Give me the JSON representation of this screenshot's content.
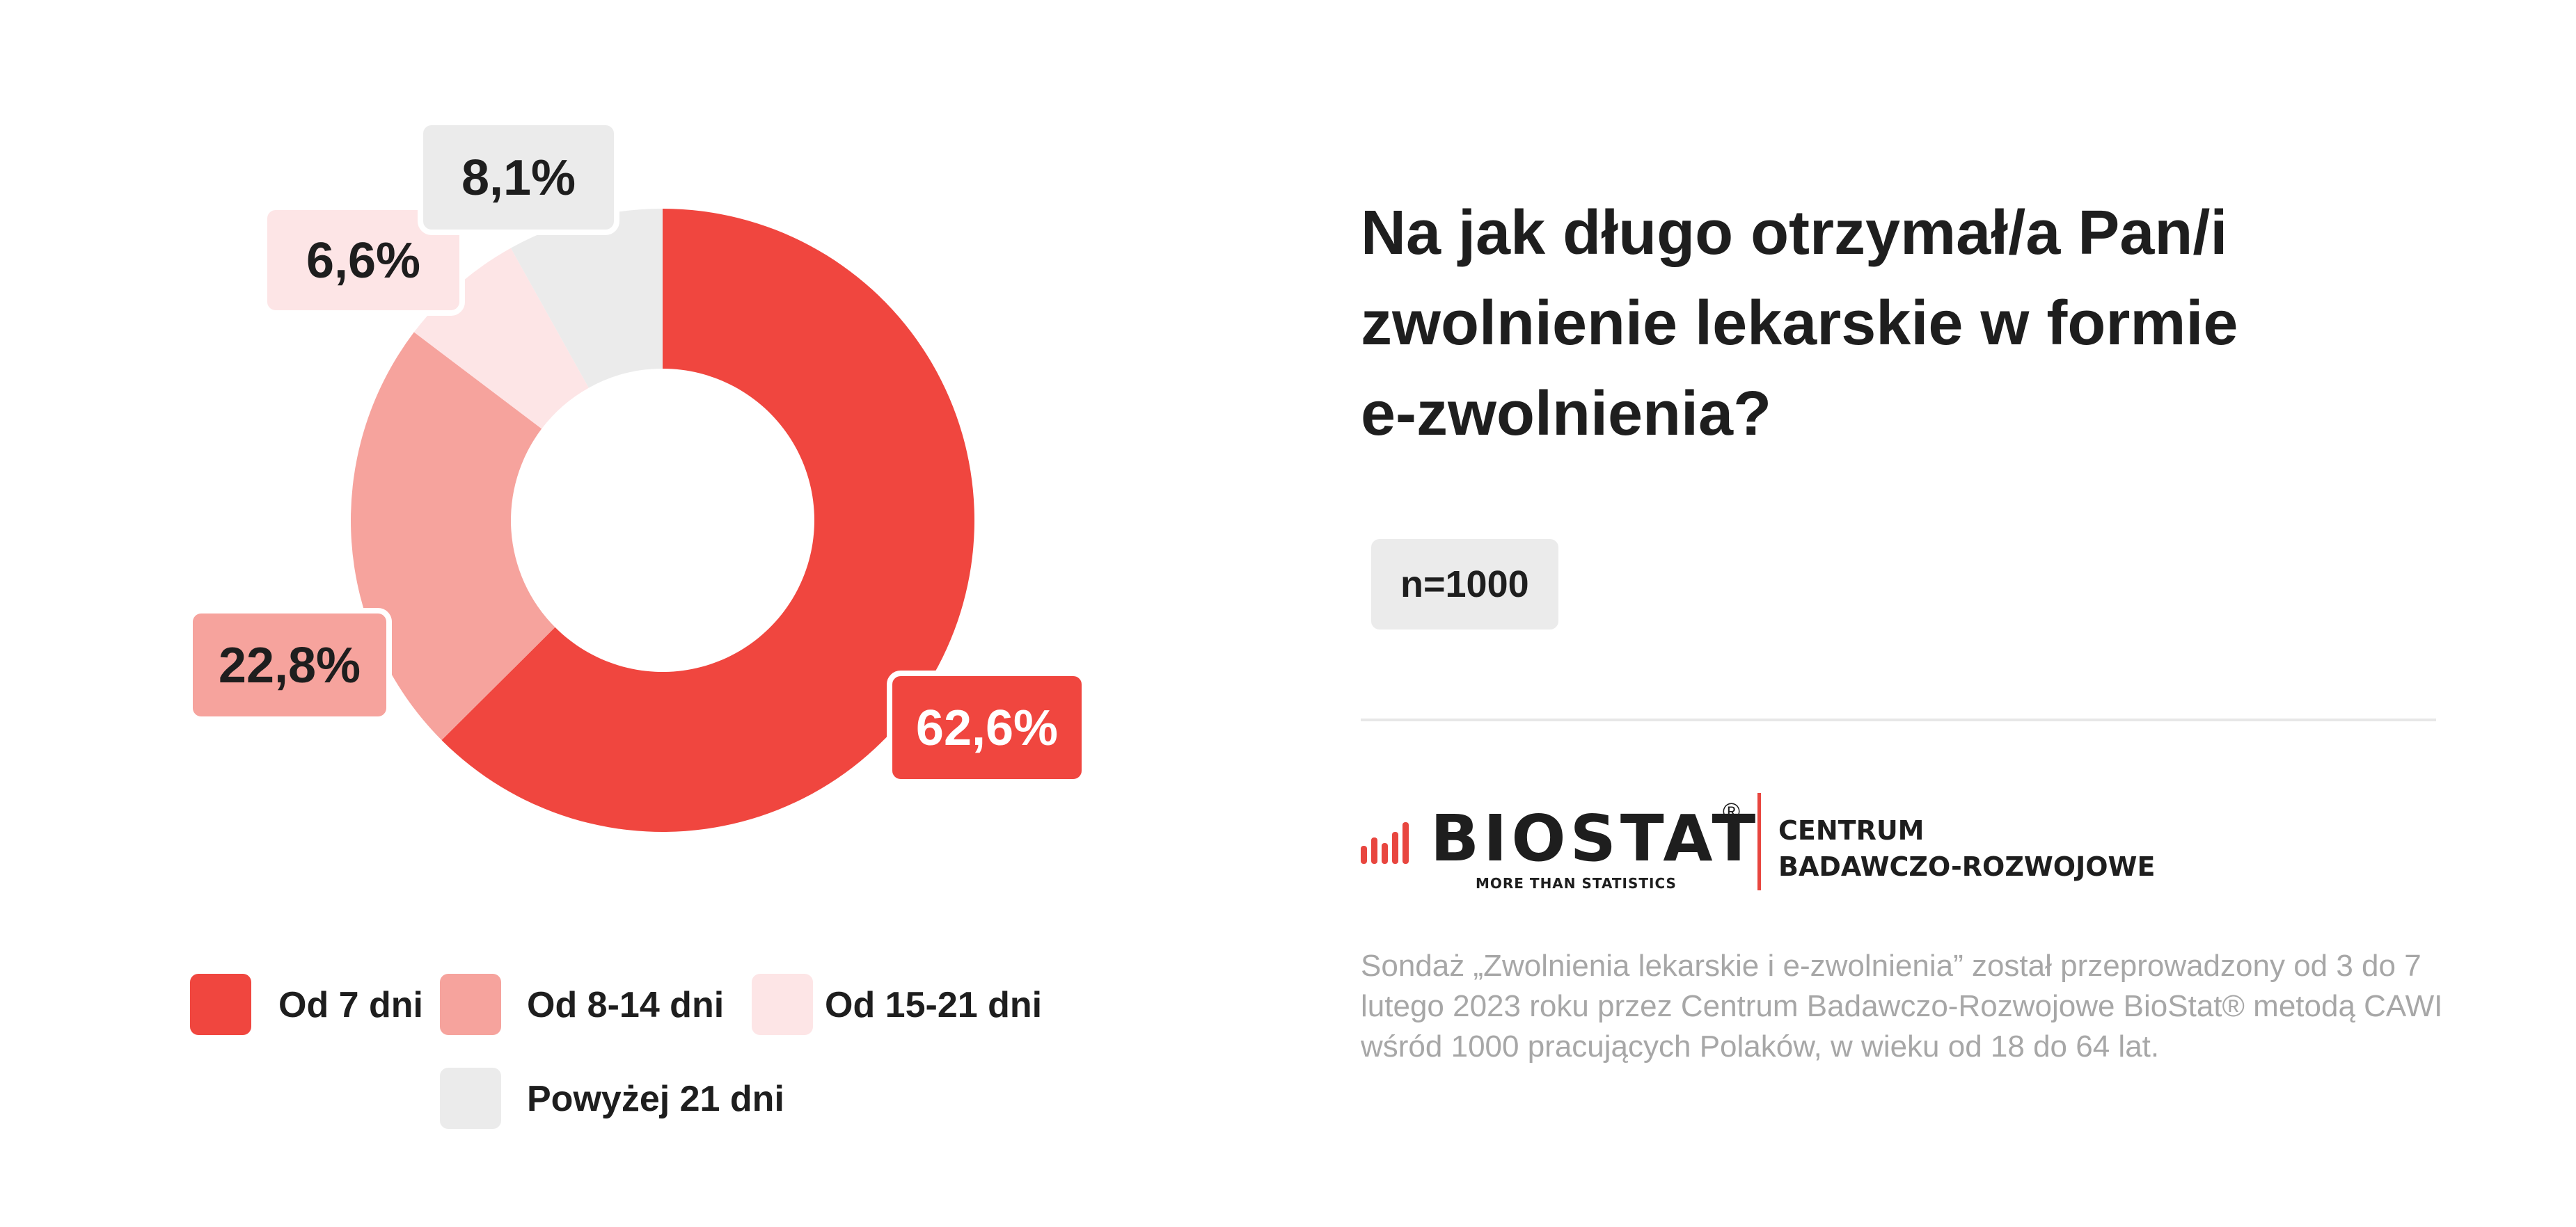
{
  "chart_data": {
    "type": "pie",
    "categories": [
      "Od 7 dni",
      "Od 8-14 dni",
      "Od 15-21 dni",
      "Powyżej 21 dni"
    ],
    "values": [
      62.6,
      22.8,
      6.6,
      8.1
    ],
    "labels": [
      "62,6%",
      "22,8%",
      "6,6%",
      "8,1%"
    ],
    "colors": [
      "#f0463f",
      "#f6a39d",
      "#fde5e6",
      "#ebebeb"
    ],
    "label_colors": [
      "#ffffff",
      "#1e1e1e",
      "#1e1e1e",
      "#1e1e1e"
    ],
    "donut": true,
    "legend_placement": "bottom",
    "title": "Na jak długo otrzymał/a Pan/i zwolnienie lekarskie w formie e-zwolnienia?"
  },
  "question": "Na jak długo otrzymał/a Pan/i zwolnienie lekarskie w formie e-zwolnienia?",
  "sample": "n=1000",
  "logo": {
    "brand": "BIOSTAT",
    "registered": "®",
    "tagline": "MORE THAN STATISTICS",
    "department_line1": "CENTRUM",
    "department_line2": "BADAWCZO-ROZWOJOWE",
    "accent_color": "#e8463f"
  },
  "footnote": "Sondaż „Zwolnienia lekarskie i e-zwolnienia” został przeprowadzony od 3 do 7 lutego 2023 roku przez Centrum Badawczo-Rozwojowe BioStat® metodą CAWI wśród 1000 pracujących Polaków, w wieku od 18 do 64 lat."
}
